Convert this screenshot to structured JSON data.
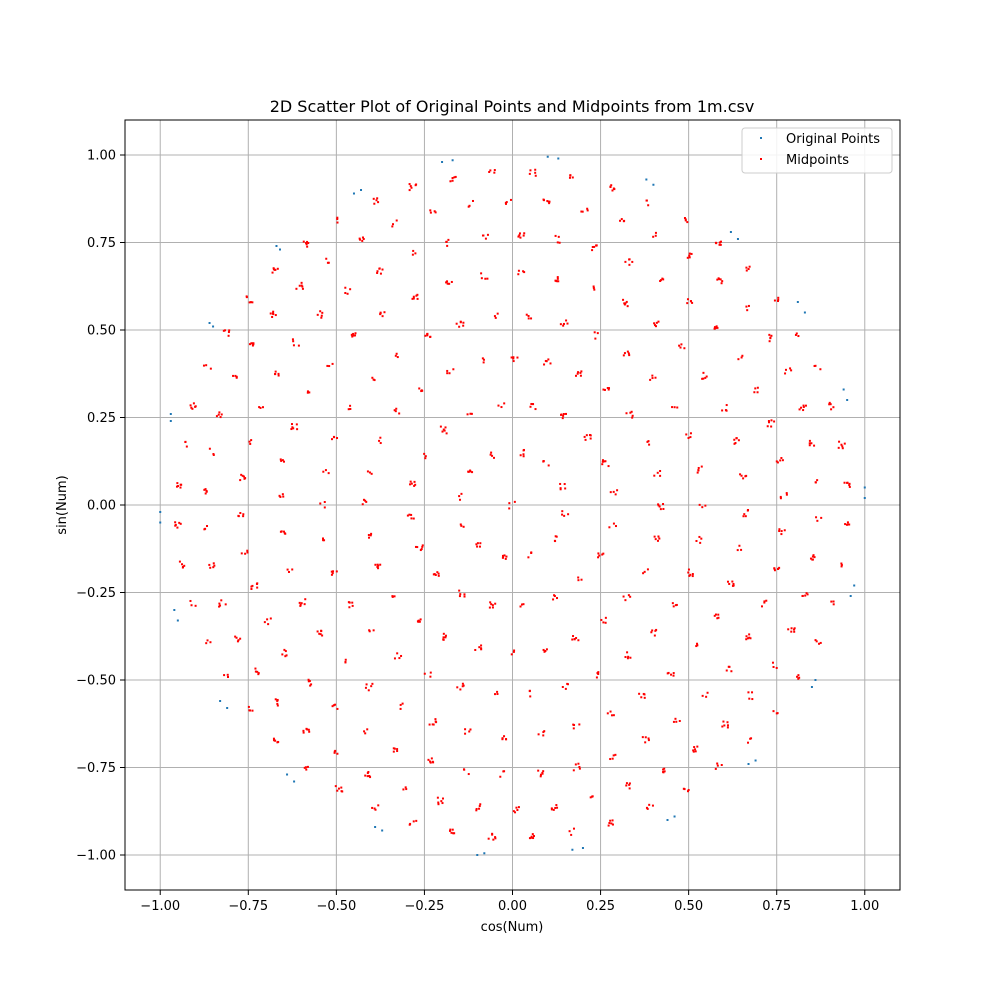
{
  "chart_data": {
    "type": "scatter",
    "title": "2D Scatter Plot of Original Points and Midpoints from 1m.csv",
    "xlabel": "cos(Num)",
    "ylabel": "sin(Num)",
    "xlim": [
      -1.1,
      1.1
    ],
    "ylim": [
      -1.1,
      1.1
    ],
    "xticks": [
      -1.0,
      -0.75,
      -0.5,
      -0.25,
      0.0,
      0.25,
      0.5,
      0.75,
      1.0
    ],
    "yticks": [
      -1.0,
      -0.75,
      -0.5,
      -0.25,
      0.0,
      0.25,
      0.5,
      0.75,
      1.0
    ],
    "xtick_labels": [
      "−1.00",
      "−0.75",
      "−0.50",
      "−0.25",
      "0.00",
      "0.25",
      "0.50",
      "0.75",
      "1.00"
    ],
    "ytick_labels": [
      "−1.00",
      "−0.75",
      "−0.50",
      "−0.25",
      "0.00",
      "0.25",
      "0.50",
      "0.75",
      "1.00"
    ],
    "grid": true,
    "legend_position": "top-right",
    "series": [
      {
        "name": "Original Points",
        "color": "#1f77b4",
        "points": [
          [
            -1.0,
            -0.02
          ],
          [
            -1.0,
            -0.05
          ],
          [
            -0.97,
            0.26
          ],
          [
            -0.97,
            0.24
          ],
          [
            -0.96,
            -0.3
          ],
          [
            -0.95,
            -0.33
          ],
          [
            -0.86,
            0.52
          ],
          [
            -0.85,
            0.51
          ],
          [
            -0.83,
            -0.56
          ],
          [
            -0.81,
            -0.58
          ],
          [
            -0.67,
            0.74
          ],
          [
            -0.66,
            0.73
          ],
          [
            -0.64,
            -0.77
          ],
          [
            -0.62,
            -0.79
          ],
          [
            -0.45,
            0.89
          ],
          [
            -0.43,
            0.9
          ],
          [
            -0.39,
            -0.92
          ],
          [
            -0.37,
            -0.93
          ],
          [
            -0.2,
            0.98
          ],
          [
            -0.17,
            0.985
          ],
          [
            -0.1,
            -1.0
          ],
          [
            -0.08,
            -0.995
          ],
          [
            0.1,
            0.995
          ],
          [
            0.13,
            0.99
          ],
          [
            0.17,
            -0.985
          ],
          [
            0.2,
            -0.98
          ],
          [
            0.38,
            0.93
          ],
          [
            0.4,
            0.915
          ],
          [
            0.44,
            -0.9
          ],
          [
            0.46,
            -0.89
          ],
          [
            0.62,
            0.78
          ],
          [
            0.64,
            0.76
          ],
          [
            0.67,
            -0.74
          ],
          [
            0.69,
            -0.73
          ],
          [
            0.81,
            0.58
          ],
          [
            0.83,
            0.55
          ],
          [
            0.85,
            -0.52
          ],
          [
            0.86,
            -0.5
          ],
          [
            0.94,
            0.33
          ],
          [
            0.95,
            0.3
          ],
          [
            0.96,
            -0.26
          ],
          [
            0.97,
            -0.23
          ],
          [
            1.0,
            0.05
          ],
          [
            1.0,
            0.02
          ]
        ]
      },
      {
        "name": "Midpoints",
        "color": "#ff0000",
        "points": "generated"
      }
    ]
  },
  "legend": {
    "original_label": "Original Points",
    "midpoints_label": "Midpoints"
  }
}
